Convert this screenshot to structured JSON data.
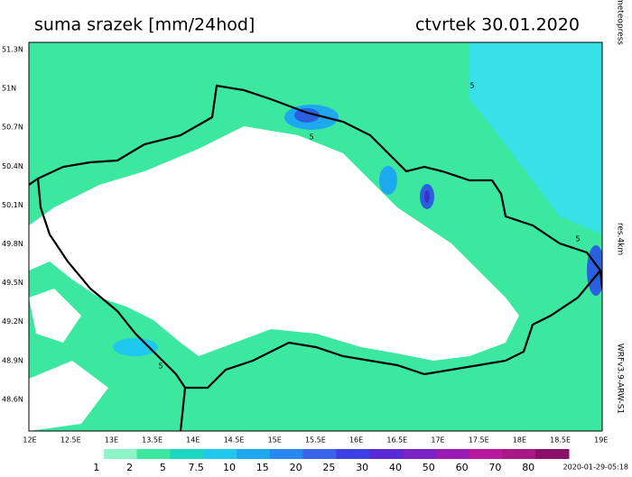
{
  "header": {
    "title": "suma srazek [mm/24hod]",
    "date": "ctvrtek 30.01.2020"
  },
  "map": {
    "lat_labels": [
      "51.3N",
      "51N",
      "50.7N",
      "50.4N",
      "50.1N",
      "49.8N",
      "49.5N",
      "49.2N",
      "48.9N",
      "48.6N"
    ],
    "lon_labels": [
      "12E",
      "12.5E",
      "13E",
      "13.5E",
      "14E",
      "14.5E",
      "15E",
      "15.5E",
      "16E",
      "16.5E",
      "17E",
      "17.5E",
      "18E",
      "18.5E",
      "19E"
    ],
    "contour_labels": [
      "5",
      "5",
      "5",
      "5"
    ]
  },
  "side": {
    "copyright": "(c)meteopress",
    "resolution": "res.4km",
    "model": "WRFv3.9-ARW-S1"
  },
  "legend": {
    "labels": [
      "1",
      "2",
      "5",
      "7.5",
      "10",
      "15",
      "20",
      "25",
      "30",
      "40",
      "50",
      "60",
      "70",
      "80"
    ],
    "colors": [
      "#ffffff",
      "#8ef5c8",
      "#3ce8a0",
      "#1ad8c0",
      "#1ec8ee",
      "#1ea8f0",
      "#2a86f0",
      "#3a62ec",
      "#3c40e4",
      "#5a2ad8",
      "#7a22c8",
      "#9a1ab4",
      "#b8189c",
      "#a81884",
      "#8a1068"
    ]
  },
  "footer": {
    "timestamp": "2020-01-29-05:18"
  }
}
